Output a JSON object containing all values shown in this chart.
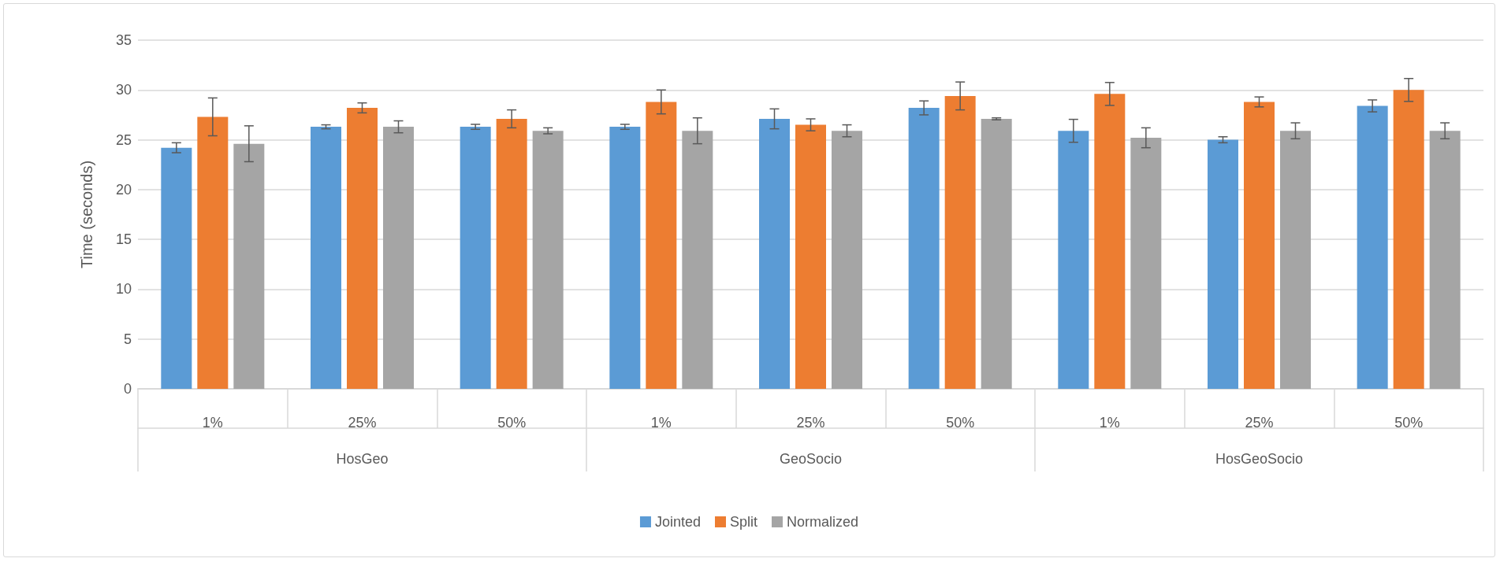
{
  "chart_data": {
    "type": "bar",
    "ylabel": "Time (seconds)",
    "categories": [
      "1%",
      "25%",
      "50%",
      "1%",
      "25%",
      "50%",
      "1%",
      "25%",
      "50%"
    ],
    "annotations": [
      "HosGeo",
      "GeoSocio",
      "HosGeoSocio"
    ],
    "series": [
      {
        "name": "Jointed",
        "color": "#5b9bd5",
        "values": [
          24.2,
          26.3,
          26.3,
          26.3,
          27.1,
          28.2,
          25.9,
          25.0,
          28.4
        ],
        "errors": [
          0.5,
          0.2,
          0.25,
          0.25,
          1.0,
          0.7,
          1.15,
          0.3,
          0.6
        ]
      },
      {
        "name": "Split",
        "color": "#ed7d31",
        "values": [
          27.3,
          28.2,
          27.1,
          28.8,
          26.5,
          29.4,
          29.6,
          28.8,
          30.0
        ],
        "errors": [
          1.9,
          0.5,
          0.9,
          1.2,
          0.6,
          1.4,
          1.15,
          0.5,
          1.15
        ]
      },
      {
        "name": "Normalized",
        "color": "#a5a5a5",
        "values": [
          24.6,
          26.3,
          25.9,
          25.9,
          25.9,
          27.1,
          25.2,
          25.9,
          25.9
        ],
        "errors": [
          1.8,
          0.6,
          0.3,
          1.3,
          0.6,
          0.1,
          1.0,
          0.8,
          0.8
        ]
      }
    ],
    "ylim": [
      0,
      35
    ],
    "yticks": [
      0,
      5,
      10,
      15,
      20,
      25,
      30,
      35
    ],
    "grid": "y",
    "legend": "bottom"
  }
}
